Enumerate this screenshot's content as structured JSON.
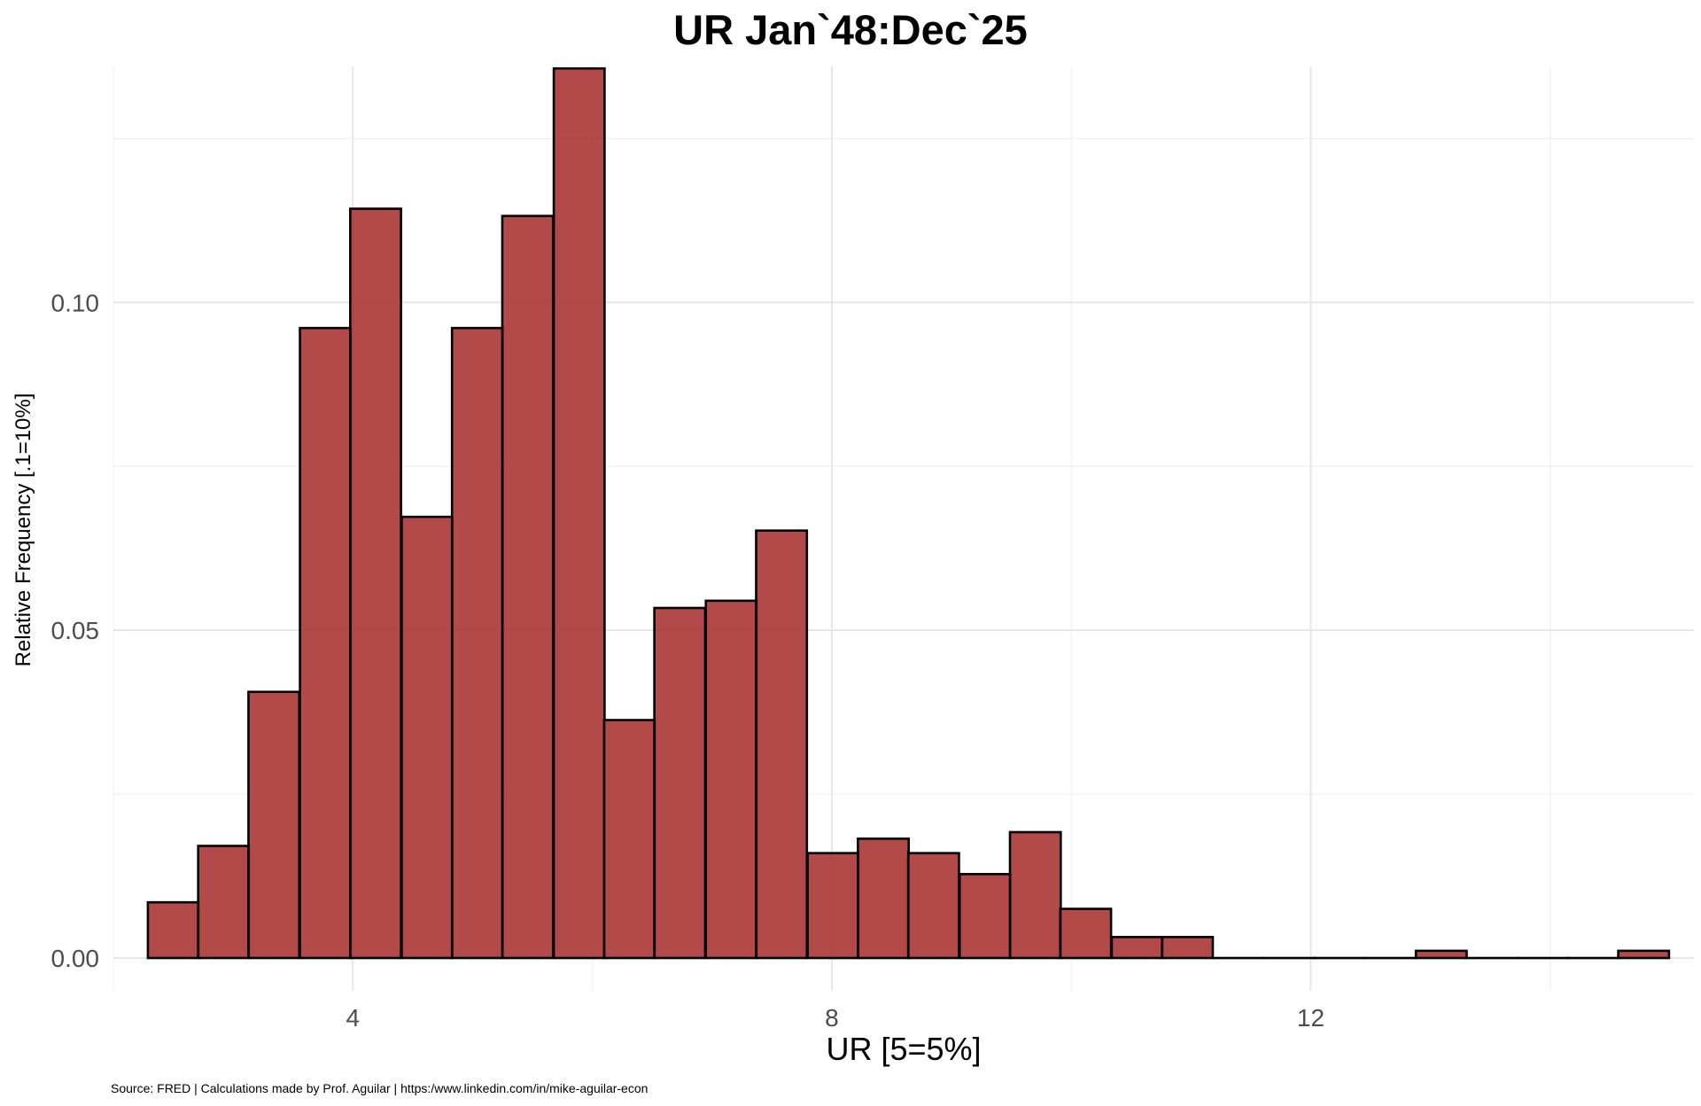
{
  "chart_data": {
    "type": "bar",
    "title": "UR Jan`48:Dec`25",
    "xlabel": "UR [5=5%]",
    "ylabel": "Relative Frequency [.1=10%]",
    "caption": "Source: FRED | Calculations made by Prof. Aguilar | https:/www.linkedin.com/in/mike-aguilar-econ",
    "xlim": [
      2.0,
      15.2
    ],
    "ylim": [
      -0.005,
      0.136
    ],
    "x_ticks": [
      4,
      8,
      12
    ],
    "x_tick_labels": [
      "4",
      "8",
      "12"
    ],
    "y_ticks": [
      0.0,
      0.05,
      0.1
    ],
    "y_tick_labels": [
      "0.00",
      "0.05",
      "0.10"
    ],
    "grid": true,
    "bar_color": "#a52a2a",
    "bar_edge_color": "#000000",
    "bin_width": 0.424,
    "bins": [
      {
        "x": 2.5,
        "value": 0.0085
      },
      {
        "x": 2.92,
        "value": 0.0171
      },
      {
        "x": 3.34,
        "value": 0.0406
      },
      {
        "x": 3.77,
        "value": 0.0961
      },
      {
        "x": 4.19,
        "value": 0.1143
      },
      {
        "x": 4.62,
        "value": 0.0673
      },
      {
        "x": 5.04,
        "value": 0.0961
      },
      {
        "x": 5.46,
        "value": 0.1132
      },
      {
        "x": 5.89,
        "value": 0.1357
      },
      {
        "x": 6.31,
        "value": 0.0363
      },
      {
        "x": 6.73,
        "value": 0.0534
      },
      {
        "x": 7.16,
        "value": 0.0545
      },
      {
        "x": 7.58,
        "value": 0.0652
      },
      {
        "x": 8.01,
        "value": 0.016
      },
      {
        "x": 8.43,
        "value": 0.0182
      },
      {
        "x": 8.85,
        "value": 0.016
      },
      {
        "x": 9.28,
        "value": 0.0128
      },
      {
        "x": 9.7,
        "value": 0.0192
      },
      {
        "x": 10.12,
        "value": 0.0075
      },
      {
        "x": 10.55,
        "value": 0.0032
      },
      {
        "x": 10.97,
        "value": 0.0032
      },
      {
        "x": 11.39,
        "value": 0.0
      },
      {
        "x": 11.82,
        "value": 0.0
      },
      {
        "x": 12.24,
        "value": 0.0
      },
      {
        "x": 12.67,
        "value": 0.0
      },
      {
        "x": 13.09,
        "value": 0.0011
      },
      {
        "x": 13.51,
        "value": 0.0
      },
      {
        "x": 13.94,
        "value": 0.0
      },
      {
        "x": 14.36,
        "value": 0.0
      },
      {
        "x": 14.78,
        "value": 0.0011
      }
    ]
  }
}
